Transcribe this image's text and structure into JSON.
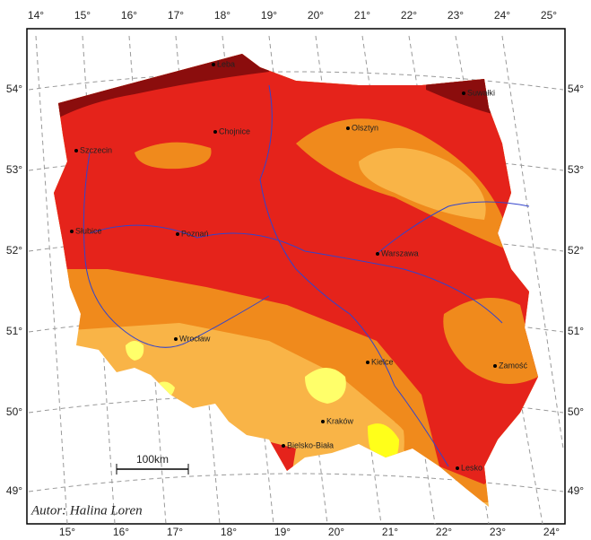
{
  "top_longitudes": [
    "14°",
    "15°",
    "16°",
    "17°",
    "18°",
    "19°",
    "20°",
    "21°",
    "22°",
    "23°",
    "24°",
    "25°"
  ],
  "bottom_longitudes": [
    "15°",
    "16°",
    "17°",
    "18°",
    "19°",
    "20°",
    "21°",
    "22°",
    "23°",
    "24°"
  ],
  "left_latitudes": [
    "54°",
    "53°",
    "52°",
    "51°",
    "50°",
    "49°"
  ],
  "right_latitudes": [
    "54°",
    "53°",
    "52°",
    "51°",
    "50°",
    "49°"
  ],
  "cities": [
    "Łeba",
    "Suwałki",
    "Chojnice",
    "Olsztyn",
    "Szczecin",
    "Słubice",
    "Poznań",
    "Warszawa",
    "Wrocław",
    "Kielce",
    "Zamość",
    "Kraków",
    "Bielsko-Biała",
    "Lesko"
  ],
  "scale_label": "100km",
  "author": "Autor: Halina Loren"
}
